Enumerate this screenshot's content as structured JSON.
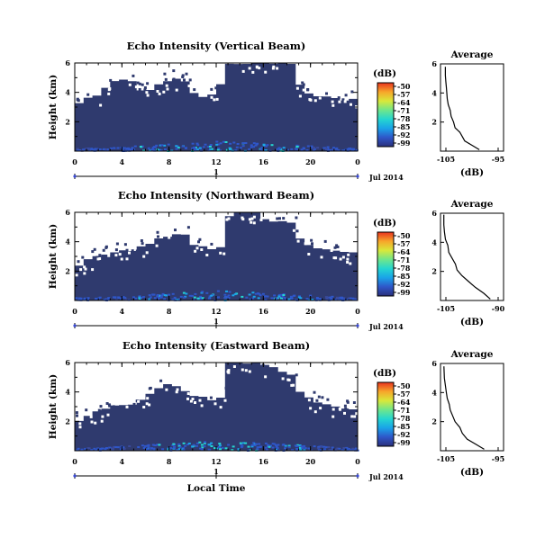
{
  "colors": {
    "background_fill": "#2f3a6e",
    "colorbar": [
      "#2a2f7a",
      "#2f56c9",
      "#1aa3e8",
      "#25d6d0",
      "#6fe68b",
      "#d9e83a",
      "#f7a62a",
      "#e8331f"
    ]
  },
  "chart_data": [
    {
      "type": "heatmap",
      "title": "Echo Intensity (Vertical Beam)",
      "ylabel": "Height (km)",
      "xlim": [
        0,
        24
      ],
      "ylim": [
        0,
        6
      ],
      "xticks": [
        "0",
        "4",
        "8",
        "12",
        "16",
        "20",
        "0"
      ],
      "yticks": [
        "6",
        "4",
        "2"
      ],
      "date_axis": {
        "day": "1",
        "label": "Jul 2014"
      },
      "colorbar": {
        "label": "(dB)",
        "ticks": [
          "-50",
          "-57",
          "-64",
          "-71",
          "-78",
          "-85",
          "-92",
          "-99"
        ]
      },
      "top_profile": [
        3.3,
        3.6,
        3.8,
        4.4,
        4.8,
        4.9,
        4.7,
        4.2,
        4.2,
        4.6,
        4.8,
        4.9,
        4.8,
        3.9,
        3.7,
        3.8,
        4.5,
        6.0,
        6.0,
        6.0,
        6.0,
        6.0,
        6.0,
        6.0,
        5.9,
        4.5,
        4.0,
        3.8,
        3.7,
        3.6,
        3.5,
        3.5
      ],
      "average": {
        "title": "Average",
        "xlabel": "(dB)",
        "xticks": [
          "-105",
          "-95"
        ],
        "yticks": [
          "6",
          "4",
          "2"
        ],
        "xlim": [
          -106,
          -93
        ],
        "ylim": [
          0,
          6
        ],
        "points": [
          [
            -98.0,
            0.1
          ],
          [
            -99.5,
            0.4
          ],
          [
            -101.0,
            0.7
          ],
          [
            -101.5,
            1.0
          ],
          [
            -102.0,
            1.3
          ],
          [
            -103.0,
            1.6
          ],
          [
            -103.3,
            2.0
          ],
          [
            -103.8,
            2.4
          ],
          [
            -104.0,
            2.8
          ],
          [
            -104.4,
            3.2
          ],
          [
            -104.6,
            3.6
          ],
          [
            -104.7,
            4.0
          ],
          [
            -104.8,
            4.4
          ],
          [
            -104.9,
            4.8
          ],
          [
            -105.0,
            5.2
          ],
          [
            -105.0,
            5.8
          ]
        ]
      }
    },
    {
      "type": "heatmap",
      "title": "Echo Intensity (Northward Beam)",
      "ylabel": "Height (km)",
      "xlim": [
        0,
        24
      ],
      "ylim": [
        0,
        6
      ],
      "xticks": [
        "0",
        "4",
        "8",
        "12",
        "16",
        "20",
        "0"
      ],
      "yticks": [
        "6",
        "4",
        "2"
      ],
      "date_axis": {
        "day": "1",
        "label": "Jul 2014"
      },
      "colorbar": {
        "label": "(dB)",
        "ticks": [
          "-50",
          "-57",
          "-64",
          "-71",
          "-78",
          "-85",
          "-92",
          "-99"
        ]
      },
      "top_profile": [
        2.4,
        2.8,
        3.0,
        3.2,
        3.3,
        3.4,
        3.4,
        3.6,
        3.8,
        4.2,
        4.4,
        4.5,
        4.4,
        3.8,
        3.6,
        3.5,
        3.7,
        5.8,
        6.0,
        6.0,
        6.0,
        5.6,
        5.4,
        5.4,
        5.3,
        4.2,
        3.8,
        3.6,
        3.5,
        3.4,
        3.3,
        3.2
      ],
      "average": {
        "title": "Average",
        "xlabel": "(dB)",
        "xticks": [
          "-105",
          "-90"
        ],
        "yticks": [
          "6",
          "4",
          "2"
        ],
        "xlim": [
          -107,
          -88
        ],
        "ylim": [
          0,
          6
        ],
        "points": [
          [
            -92.0,
            0.1
          ],
          [
            -94.0,
            0.5
          ],
          [
            -96.5,
            0.9
          ],
          [
            -98.5,
            1.3
          ],
          [
            -100.5,
            1.7
          ],
          [
            -102.0,
            2.1
          ],
          [
            -102.5,
            2.5
          ],
          [
            -103.5,
            2.9
          ],
          [
            -104.5,
            3.3
          ],
          [
            -104.8,
            3.8
          ],
          [
            -105.5,
            4.2
          ],
          [
            -105.8,
            4.7
          ],
          [
            -106.0,
            5.2
          ],
          [
            -106.0,
            5.9
          ]
        ]
      }
    },
    {
      "type": "heatmap",
      "title": "Echo Intensity (Eastward Beam)",
      "ylabel": "Height (km)",
      "xlim": [
        0,
        24
      ],
      "ylim": [
        0,
        6
      ],
      "xticks": [
        "0",
        "4",
        "8",
        "12",
        "16",
        "20",
        "0"
      ],
      "yticks": [
        "6",
        "4",
        "2"
      ],
      "date_axis": {
        "day": "1",
        "label": "Jul 2014"
      },
      "xlabel": "Local Time",
      "colorbar": {
        "label": "(dB)",
        "ticks": [
          "-50",
          "-57",
          "-64",
          "-71",
          "-78",
          "-85",
          "-92",
          "-99"
        ]
      },
      "top_profile": [
        2.1,
        2.4,
        2.6,
        2.8,
        3.0,
        3.1,
        3.2,
        3.5,
        3.8,
        4.3,
        4.5,
        4.4,
        4.0,
        3.8,
        3.6,
        3.5,
        3.7,
        6.0,
        6.0,
        6.0,
        6.0,
        5.8,
        5.6,
        5.4,
        5.2,
        4.0,
        3.6,
        3.3,
        3.1,
        3.0,
        2.9,
        2.8
      ],
      "average": {
        "title": "Average",
        "xlabel": "(dB)",
        "xticks": [
          "-105",
          "-95"
        ],
        "yticks": [
          "6",
          "4",
          "2"
        ],
        "xlim": [
          -106,
          -93
        ],
        "ylim": [
          0,
          6
        ],
        "points": [
          [
            -97.0,
            0.1
          ],
          [
            -98.5,
            0.4
          ],
          [
            -100.5,
            0.8
          ],
          [
            -101.5,
            1.2
          ],
          [
            -102.0,
            1.6
          ],
          [
            -103.0,
            2.0
          ],
          [
            -103.5,
            2.4
          ],
          [
            -104.0,
            2.8
          ],
          [
            -104.2,
            3.2
          ],
          [
            -104.6,
            3.6
          ],
          [
            -104.8,
            4.0
          ],
          [
            -105.0,
            4.5
          ],
          [
            -105.2,
            5.0
          ],
          [
            -105.3,
            5.8
          ]
        ]
      }
    }
  ]
}
